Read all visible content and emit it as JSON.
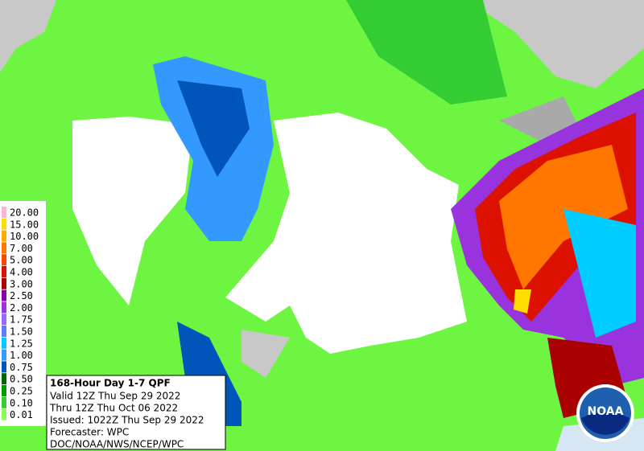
{
  "legend": {
    "items": [
      {
        "label": "20.00",
        "color": "#ffb3d9"
      },
      {
        "label": "15.00",
        "color": "#ffdd00"
      },
      {
        "label": "10.00",
        "color": "#ffaa00"
      },
      {
        "label": "7.00",
        "color": "#ff7700"
      },
      {
        "label": "5.00",
        "color": "#ff4400"
      },
      {
        "label": "4.00",
        "color": "#dd1100"
      },
      {
        "label": "3.00",
        "color": "#aa0000"
      },
      {
        "label": "2.50",
        "color": "#8800aa"
      },
      {
        "label": "2.00",
        "color": "#9933dd"
      },
      {
        "label": "1.75",
        "color": "#9966ff"
      },
      {
        "label": "1.50",
        "color": "#6677ff"
      },
      {
        "label": "1.25",
        "color": "#00ccff"
      },
      {
        "label": "1.00",
        "color": "#3399ff"
      },
      {
        "label": "0.75",
        "color": "#0055bb"
      },
      {
        "label": "0.50",
        "color": "#006600"
      },
      {
        "label": "0.25",
        "color": "#009900"
      },
      {
        "label": "0.10",
        "color": "#33cc33"
      },
      {
        "label": "0.01",
        "color": "#88ff55"
      }
    ]
  },
  "info": {
    "title": "168-Hour Day 1-7 QPF",
    "lines": [
      "Valid 12Z Thu Sep 29 2022",
      "Thru 12Z Thu Oct 06 2022",
      "Issued: 1022Z Thu Sep 29 2022",
      "Forecaster: WPC",
      "DOC/NOAA/NWS/NCEP/WPC"
    ]
  },
  "logo": {
    "text": "NOAA"
  }
}
